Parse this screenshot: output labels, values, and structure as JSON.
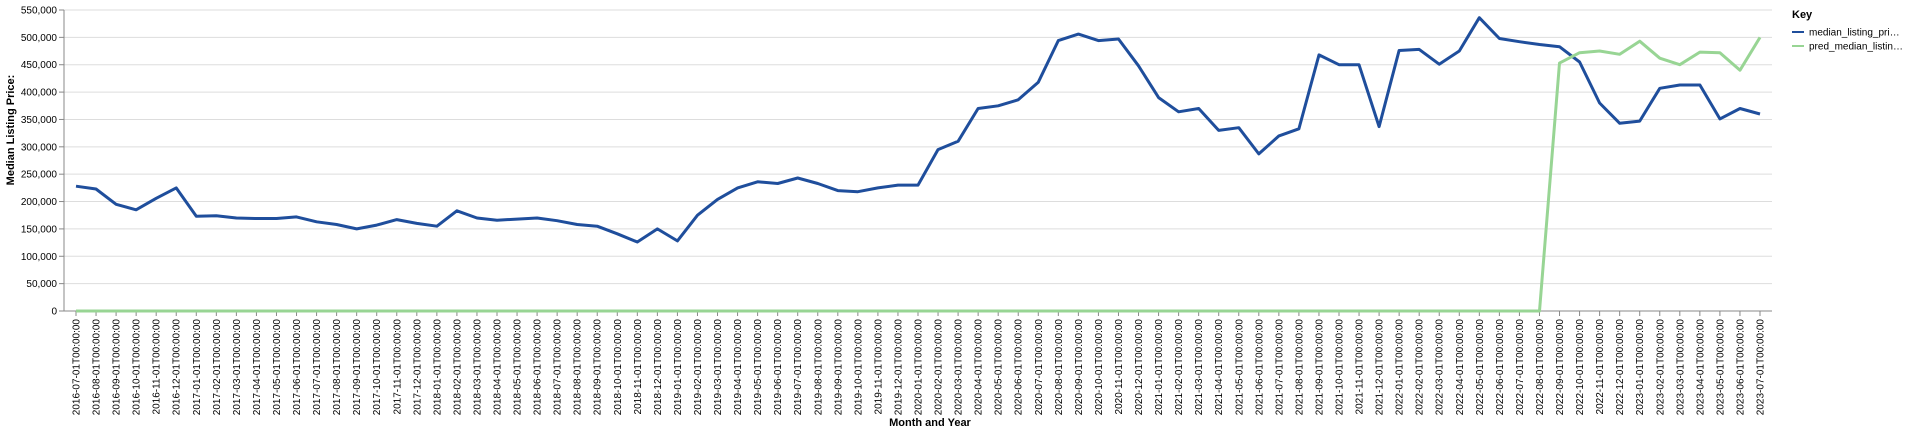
{
  "chart_data": {
    "type": "line",
    "xlabel": "Month and Year",
    "ylabel": "Median Listing Price:",
    "legend_title": "Key",
    "legend_position": "right",
    "grid": true,
    "categories": [
      "2016-07-01T00:00:00",
      "2016-08-01T00:00:00",
      "2016-09-01T00:00:00",
      "2016-10-01T00:00:00",
      "2016-11-01T00:00:00",
      "2016-12-01T00:00:00",
      "2017-01-01T00:00:00",
      "2017-02-01T00:00:00",
      "2017-03-01T00:00:00",
      "2017-04-01T00:00:00",
      "2017-05-01T00:00:00",
      "2017-06-01T00:00:00",
      "2017-07-01T00:00:00",
      "2017-08-01T00:00:00",
      "2017-09-01T00:00:00",
      "2017-10-01T00:00:00",
      "2017-11-01T00:00:00",
      "2017-12-01T00:00:00",
      "2018-01-01T00:00:00",
      "2018-02-01T00:00:00",
      "2018-03-01T00:00:00",
      "2018-04-01T00:00:00",
      "2018-05-01T00:00:00",
      "2018-06-01T00:00:00",
      "2018-07-01T00:00:00",
      "2018-08-01T00:00:00",
      "2018-09-01T00:00:00",
      "2018-10-01T00:00:00",
      "2018-11-01T00:00:00",
      "2018-12-01T00:00:00",
      "2019-01-01T00:00:00",
      "2019-02-01T00:00:00",
      "2019-03-01T00:00:00",
      "2019-04-01T00:00:00",
      "2019-05-01T00:00:00",
      "2019-06-01T00:00:00",
      "2019-07-01T00:00:00",
      "2019-08-01T00:00:00",
      "2019-09-01T00:00:00",
      "2019-10-01T00:00:00",
      "2019-11-01T00:00:00",
      "2019-12-01T00:00:00",
      "2020-01-01T00:00:00",
      "2020-02-01T00:00:00",
      "2020-03-01T00:00:00",
      "2020-04-01T00:00:00",
      "2020-05-01T00:00:00",
      "2020-06-01T00:00:00",
      "2020-07-01T00:00:00",
      "2020-08-01T00:00:00",
      "2020-09-01T00:00:00",
      "2020-10-01T00:00:00",
      "2020-11-01T00:00:00",
      "2020-12-01T00:00:00",
      "2021-01-01T00:00:00",
      "2021-02-01T00:00:00",
      "2021-03-01T00:00:00",
      "2021-04-01T00:00:00",
      "2021-05-01T00:00:00",
      "2021-06-01T00:00:00",
      "2021-07-01T00:00:00",
      "2021-08-01T00:00:00",
      "2021-09-01T00:00:00",
      "2021-10-01T00:00:00",
      "2021-11-01T00:00:00",
      "2021-12-01T00:00:00",
      "2022-01-01T00:00:00",
      "2022-02-01T00:00:00",
      "2022-03-01T00:00:00",
      "2022-04-01T00:00:00",
      "2022-05-01T00:00:00",
      "2022-06-01T00:00:00",
      "2022-07-01T00:00:00",
      "2022-08-01T00:00:00",
      "2022-09-01T00:00:00",
      "2022-10-01T00:00:00",
      "2022-11-01T00:00:00",
      "2022-12-01T00:00:00",
      "2023-01-01T00:00:00",
      "2023-02-01T00:00:00",
      "2023-03-01T00:00:00",
      "2023-04-01T00:00:00",
      "2023-05-01T00:00:00",
      "2023-06-01T00:00:00",
      "2023-07-01T00:00:00"
    ],
    "series": [
      {
        "name": "median_listing_pri…",
        "color": "#1f4e9c",
        "values": [
          228000,
          223000,
          195000,
          185000,
          206000,
          225000,
          173000,
          174000,
          170000,
          169000,
          169000,
          172000,
          163000,
          158000,
          150000,
          157000,
          167000,
          160000,
          155000,
          183000,
          170000,
          166000,
          168000,
          170000,
          165000,
          158000,
          155000,
          141000,
          126000,
          150000,
          128000,
          175000,
          204000,
          225000,
          236000,
          233000,
          243000,
          233000,
          220000,
          218000,
          225000,
          230000,
          230000,
          295000,
          310000,
          370000,
          375000,
          386000,
          418000,
          494000,
          506000,
          494000,
          497000,
          448000,
          390000,
          364000,
          370000,
          330000,
          335000,
          287000,
          320000,
          333000,
          468000,
          450000,
          450000,
          337000,
          476000,
          478000,
          451000,
          475000,
          536000,
          498000,
          492000,
          487000,
          483000,
          455000,
          380000,
          343000,
          347000,
          407000,
          413000,
          413000,
          351000,
          370000,
          360000
        ]
      },
      {
        "name": "pred_median_listin…",
        "color": "#98d594",
        "values": [
          0,
          0,
          0,
          0,
          0,
          0,
          0,
          0,
          0,
          0,
          0,
          0,
          0,
          0,
          0,
          0,
          0,
          0,
          0,
          0,
          0,
          0,
          0,
          0,
          0,
          0,
          0,
          0,
          0,
          0,
          0,
          0,
          0,
          0,
          0,
          0,
          0,
          0,
          0,
          0,
          0,
          0,
          0,
          0,
          0,
          0,
          0,
          0,
          0,
          0,
          0,
          0,
          0,
          0,
          0,
          0,
          0,
          0,
          0,
          0,
          0,
          0,
          0,
          0,
          0,
          0,
          0,
          0,
          0,
          0,
          0,
          0,
          0,
          0,
          453000,
          472000,
          475000,
          469000,
          493000,
          462000,
          450000,
          473000,
          472000,
          440000,
          500000
        ]
      }
    ],
    "ylim": [
      0,
      550000
    ],
    "yticks": [
      0,
      {
        "value": 50000,
        "label": "50,000"
      },
      {
        "value": 100000,
        "label": "100,000"
      },
      {
        "value": 150000,
        "label": "150,000"
      },
      {
        "value": 200000,
        "label": "200,000"
      },
      {
        "value": 250000,
        "label": "250,000"
      },
      {
        "value": 300000,
        "label": "300,000"
      },
      {
        "value": 350000,
        "label": "350,000"
      },
      {
        "value": 400000,
        "label": "400,000"
      },
      {
        "value": 450000,
        "label": "450,000"
      },
      {
        "value": 500000,
        "label": "500,000"
      },
      {
        "value": 550000,
        "label": "550,000"
      }
    ]
  }
}
